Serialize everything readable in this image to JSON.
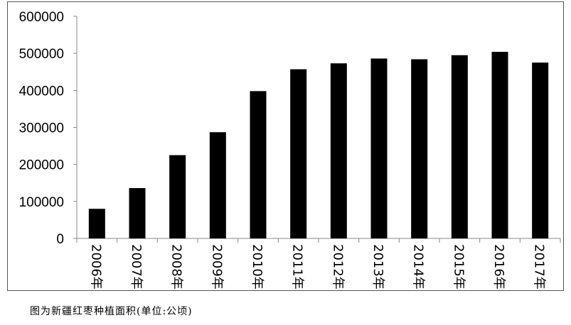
{
  "chart_data": {
    "type": "bar",
    "categories": [
      "2006年",
      "2007年",
      "2008年",
      "2009年",
      "2010年",
      "2011年",
      "2012年",
      "2013年",
      "2014年",
      "2015年",
      "2016年",
      "2017年"
    ],
    "values": [
      80000,
      136000,
      225000,
      287000,
      398000,
      457000,
      473000,
      486000,
      484000,
      495000,
      504000,
      475000
    ],
    "ylim": [
      0,
      600000
    ],
    "yticks": [
      0,
      100000,
      200000,
      300000,
      400000,
      500000,
      600000
    ],
    "bar_color": "#000000",
    "grid": false,
    "legend": "none"
  },
  "caption": "图为新疆红枣种植面积(单位:公顷)"
}
